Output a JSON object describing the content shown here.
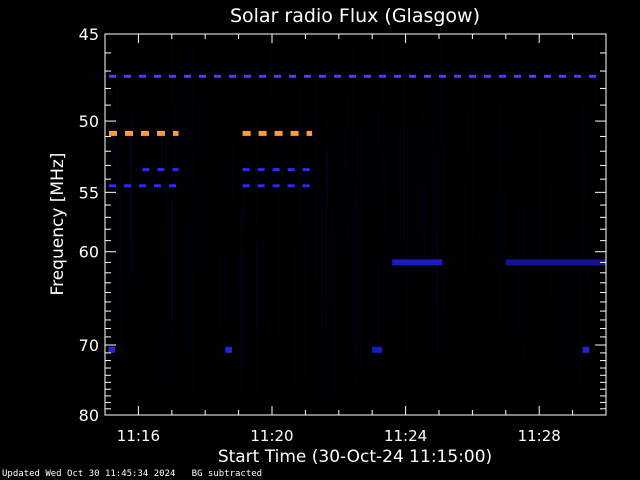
{
  "chart_data": {
    "type": "heatmap",
    "title": "Solar radio Flux (Glasgow)",
    "xlabel": "Start Time (30-Oct-24 11:15:00)",
    "ylabel": "Frequency [MHz]",
    "x_unit": "minutes after 11:15:00",
    "xlim": [
      0,
      15
    ],
    "ylim": [
      80,
      45
    ],
    "y_scale": "reciprocal",
    "x_ticks": [
      {
        "value": 1,
        "label": "11:16"
      },
      {
        "value": 5,
        "label": "11:20"
      },
      {
        "value": 9,
        "label": "11:24"
      },
      {
        "value": 13,
        "label": "11:28"
      }
    ],
    "y_ticks": [
      {
        "value": 45,
        "label": "45"
      },
      {
        "value": 50,
        "label": "50"
      },
      {
        "value": 55,
        "label": "55"
      },
      {
        "value": 60,
        "label": "60"
      },
      {
        "value": 70,
        "label": "70"
      },
      {
        "value": 80,
        "label": "80"
      }
    ],
    "features": [
      {
        "kind": "interference",
        "freq_mhz": 47.3,
        "t_start": 0.0,
        "t_end": 15.0,
        "level": "medium",
        "color": "#4a3cff",
        "dashed": true
      },
      {
        "kind": "interference",
        "freq_mhz": 50.8,
        "t_start": 0.0,
        "t_end": 2.2,
        "level": "high",
        "color": "#ff9a3c",
        "dashed": true
      },
      {
        "kind": "interference",
        "freq_mhz": 50.8,
        "t_start": 4.0,
        "t_end": 6.2,
        "level": "high",
        "color": "#ff9a3c",
        "dashed": true
      },
      {
        "kind": "interference",
        "freq_mhz": 53.3,
        "t_start": 1.0,
        "t_end": 2.2,
        "level": "medium",
        "color": "#2a2aff",
        "dashed": true
      },
      {
        "kind": "interference",
        "freq_mhz": 53.3,
        "t_start": 4.0,
        "t_end": 6.2,
        "level": "medium",
        "color": "#2a2aff",
        "dashed": true
      },
      {
        "kind": "interference",
        "freq_mhz": 54.5,
        "t_start": 0.0,
        "t_end": 2.2,
        "level": "medium",
        "color": "#2a2aff",
        "dashed": true
      },
      {
        "kind": "interference",
        "freq_mhz": 54.5,
        "t_start": 4.0,
        "t_end": 6.2,
        "level": "medium",
        "color": "#2a2aff",
        "dashed": true
      },
      {
        "kind": "burst",
        "freq_mhz": 61.0,
        "t_start": 8.6,
        "t_end": 10.1,
        "level": "medium",
        "color": "#2020e8",
        "dashed": false
      },
      {
        "kind": "burst",
        "freq_mhz": 61.0,
        "t_start": 12.0,
        "t_end": 15.0,
        "level": "low",
        "color": "#1818b0",
        "dashed": false
      },
      {
        "kind": "spot",
        "freq_mhz": 70.6,
        "t_start": 0.1,
        "t_end": 0.3,
        "level": "medium",
        "color": "#2a2aff",
        "dashed": false
      },
      {
        "kind": "spot",
        "freq_mhz": 70.6,
        "t_start": 3.6,
        "t_end": 3.8,
        "level": "medium",
        "color": "#2a2aff",
        "dashed": false
      },
      {
        "kind": "spot",
        "freq_mhz": 70.6,
        "t_start": 8.0,
        "t_end": 8.3,
        "level": "low",
        "color": "#2020e8",
        "dashed": false
      },
      {
        "kind": "spot",
        "freq_mhz": 70.6,
        "t_start": 14.3,
        "t_end": 14.5,
        "level": "medium",
        "color": "#2a2aff",
        "dashed": false
      }
    ],
    "colors": {
      "background": "#000000",
      "noise": "#0a0a3c",
      "text": "#ffffff"
    }
  },
  "footer": {
    "updated": "Updated Wed Oct 30 11:45:34 2024",
    "note": "BG subtracted"
  }
}
